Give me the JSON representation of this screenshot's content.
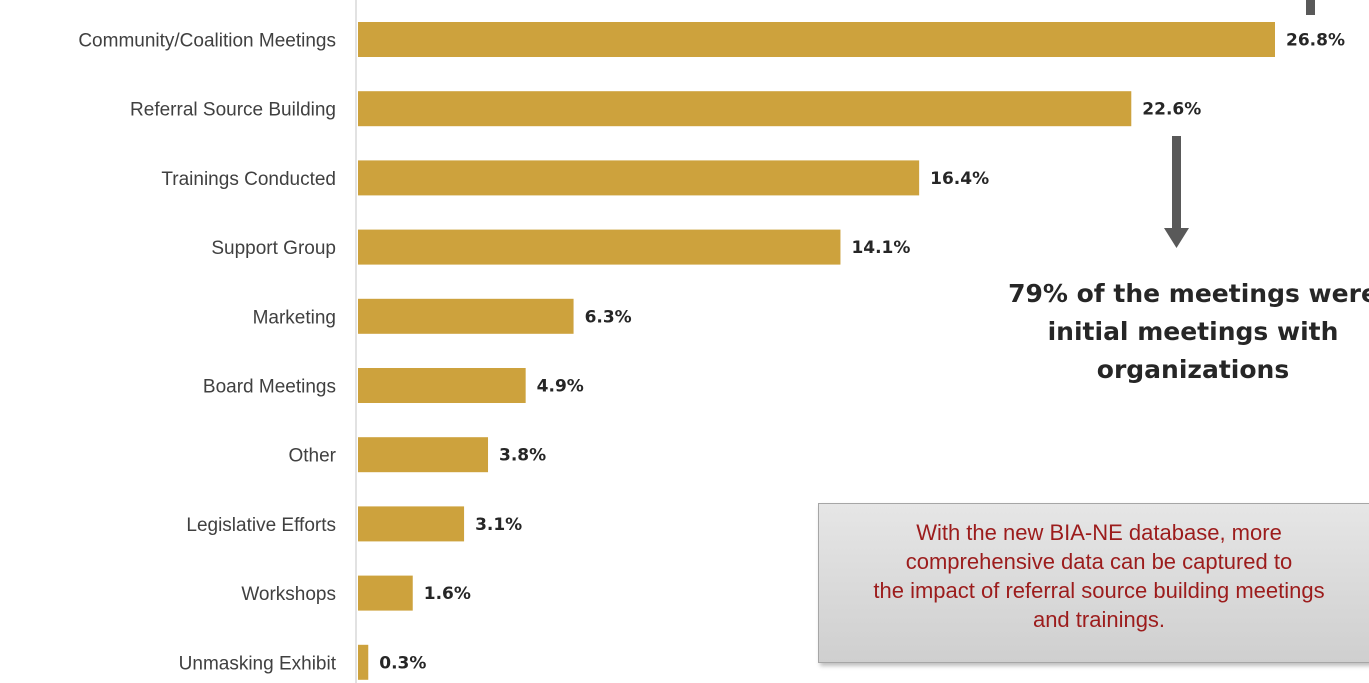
{
  "chart_data": {
    "type": "bar",
    "orientation": "horizontal",
    "categories": [
      "Community/Coalition Meetings",
      "Referral Source Building",
      "Trainings Conducted",
      "Support Group",
      "Marketing",
      "Board Meetings",
      "Other",
      "Legislative Efforts",
      "Workshops",
      "Unmasking Exhibit"
    ],
    "values": [
      26.8,
      22.6,
      16.4,
      14.1,
      6.3,
      4.9,
      3.8,
      3.1,
      1.6,
      0.3
    ],
    "value_labels": [
      "26.8%",
      "22.6%",
      "16.4%",
      "14.1%",
      "6.3%",
      "4.9%",
      "3.8%",
      "3.1%",
      "1.6%",
      "0.3%"
    ],
    "xlim": [
      0,
      26.8
    ],
    "grid": false,
    "bar_color": "#CDA23D"
  },
  "callout": {
    "lines": [
      "79% of the meetings were",
      "initial meetings with",
      "organizations"
    ],
    "arrow_color": "#595959"
  },
  "note": {
    "lines": [
      "With the new BIA-NE database, more",
      "comprehensive data can be captured to",
      "the impact of referral source building meetings",
      "and trainings."
    ],
    "text_color": "#9C1C1C"
  }
}
